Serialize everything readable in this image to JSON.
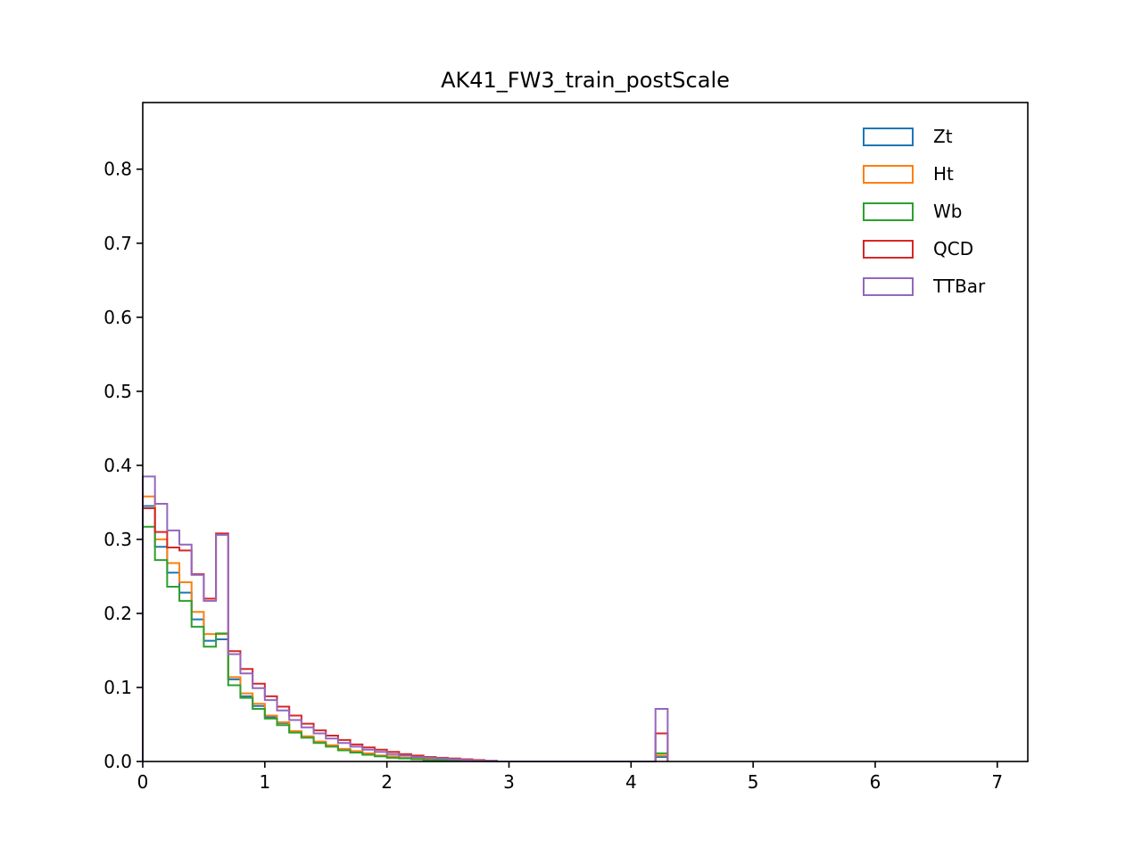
{
  "chart_data": {
    "type": "step-histogram",
    "title": "AK41_FW3_train_postScale",
    "xlabel": "",
    "ylabel": "",
    "xlim": [
      0,
      7.25
    ],
    "ylim": [
      0,
      0.89
    ],
    "xticks": [
      0,
      1,
      2,
      3,
      4,
      5,
      6,
      7
    ],
    "xtick_labels": [
      "0",
      "1",
      "2",
      "3",
      "4",
      "5",
      "6",
      "7"
    ],
    "yticks": [
      0.0,
      0.1,
      0.2,
      0.3,
      0.4,
      0.5,
      0.6,
      0.7,
      0.8
    ],
    "ytick_labels": [
      "0.0",
      "0.1",
      "0.2",
      "0.3",
      "0.4",
      "0.5",
      "0.6",
      "0.7",
      "0.8"
    ],
    "grid": false,
    "legend_position": "top-right",
    "bin_width": 0.1,
    "bin_edges_start": 0,
    "series": [
      {
        "name": "Zt",
        "color": "#1f77b4",
        "values": [
          0.345,
          0.29,
          0.255,
          0.228,
          0.192,
          0.163,
          0.165,
          0.111,
          0.088,
          0.075,
          0.06,
          0.052,
          0.04,
          0.033,
          0.026,
          0.021,
          0.016,
          0.013,
          0.01,
          0.008,
          0.006,
          0.005,
          0.004,
          0.003,
          0.002,
          0.002,
          0.001,
          0.001,
          0.0005,
          0,
          0,
          0,
          0,
          0,
          0,
          0,
          0,
          0,
          0,
          0,
          0,
          0,
          0.006
        ]
      },
      {
        "name": "Ht",
        "color": "#ff7f0e",
        "values": [
          0.358,
          0.3,
          0.268,
          0.242,
          0.202,
          0.172,
          0.172,
          0.114,
          0.092,
          0.078,
          0.062,
          0.053,
          0.041,
          0.034,
          0.027,
          0.022,
          0.017,
          0.014,
          0.011,
          0.008,
          0.007,
          0.005,
          0.004,
          0.003,
          0.002,
          0.002,
          0.001,
          0.001,
          0.0005,
          0,
          0,
          0,
          0,
          0,
          0,
          0,
          0,
          0,
          0,
          0,
          0,
          0,
          0.008
        ]
      },
      {
        "name": "Wb",
        "color": "#2ca02c",
        "values": [
          0.317,
          0.272,
          0.236,
          0.217,
          0.182,
          0.155,
          0.173,
          0.103,
          0.086,
          0.071,
          0.058,
          0.049,
          0.039,
          0.032,
          0.025,
          0.02,
          0.015,
          0.012,
          0.009,
          0.007,
          0.005,
          0.004,
          0.003,
          0.002,
          0.002,
          0.001,
          0.001,
          0.0005,
          0.0005,
          0,
          0,
          0,
          0,
          0,
          0,
          0,
          0,
          0,
          0,
          0,
          0,
          0,
          0.011
        ]
      },
      {
        "name": "QCD",
        "color": "#d62728",
        "values": [
          0.342,
          0.31,
          0.289,
          0.285,
          0.253,
          0.22,
          0.308,
          0.149,
          0.125,
          0.105,
          0.088,
          0.074,
          0.062,
          0.051,
          0.042,
          0.035,
          0.029,
          0.023,
          0.019,
          0.016,
          0.013,
          0.01,
          0.008,
          0.006,
          0.005,
          0.004,
          0.003,
          0.002,
          0.001,
          0,
          0,
          0,
          0,
          0,
          0,
          0,
          0,
          0,
          0,
          0,
          0,
          0,
          0.038
        ]
      },
      {
        "name": "TTBar",
        "color": "#9467bd",
        "values": [
          0.385,
          0.348,
          0.312,
          0.293,
          0.252,
          0.217,
          0.306,
          0.145,
          0.119,
          0.099,
          0.083,
          0.069,
          0.056,
          0.046,
          0.038,
          0.031,
          0.025,
          0.02,
          0.016,
          0.013,
          0.01,
          0.008,
          0.006,
          0.005,
          0.004,
          0.003,
          0.002,
          0.001,
          0.001,
          0,
          0,
          0,
          0,
          0,
          0,
          0,
          0,
          0,
          0,
          0,
          0,
          0,
          0.071
        ]
      }
    ]
  }
}
